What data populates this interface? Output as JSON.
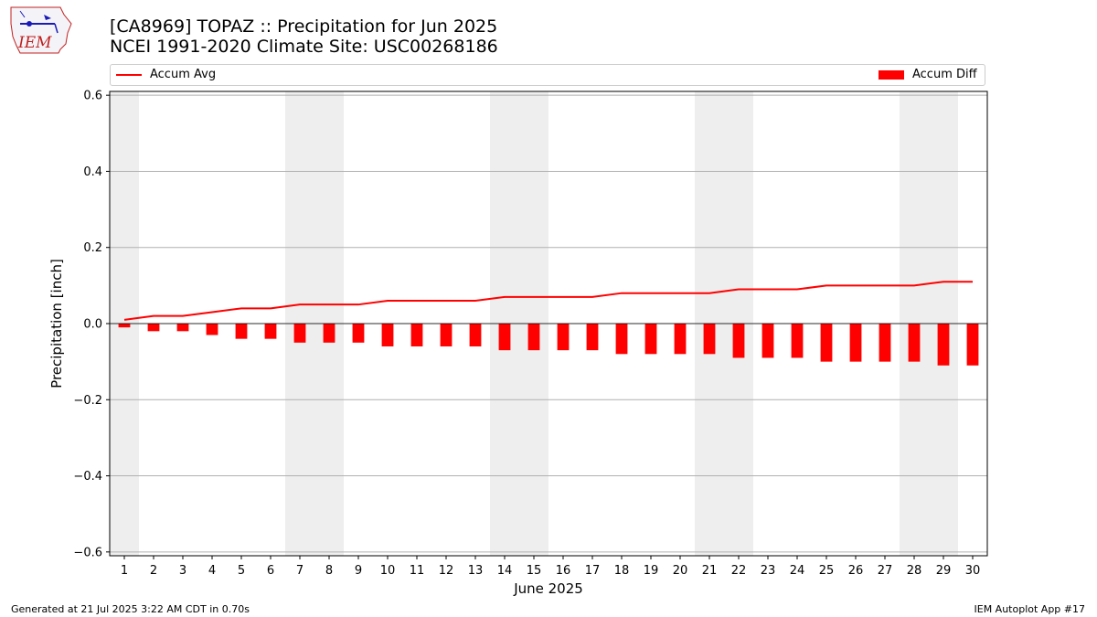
{
  "header": {
    "title_line1": "[CA8969] TOPAZ :: Precipitation for Jun 2025",
    "title_line2": "NCEI 1991-2020 Climate Site: USC00268186",
    "logo_text": "IEM"
  },
  "legend": {
    "line_label": "Accum Avg",
    "bar_label": "Accum Diff"
  },
  "footer": {
    "left": "Generated at 21 Jul 2025 3:22 AM CDT in 0.70s",
    "right": "IEM Autoplot App #17"
  },
  "colors": {
    "series": "#ff0000",
    "weekend_shade": "#eeeeee",
    "grid": "#b0b0b0"
  },
  "chart_data": {
    "type": "bar",
    "xlabel": "June 2025",
    "ylabel": "Precipitation [inch]",
    "ylim": [
      -0.61,
      0.61
    ],
    "xlim": [
      0.5,
      30.5
    ],
    "yticks": [
      -0.6,
      -0.4,
      -0.2,
      0.0,
      0.2,
      0.4,
      0.6
    ],
    "ytick_labels": [
      "−0.6",
      "−0.4",
      "−0.2",
      "0.0",
      "0.2",
      "0.4",
      "0.6"
    ],
    "categories": [
      "1",
      "2",
      "3",
      "4",
      "5",
      "6",
      "7",
      "8",
      "9",
      "10",
      "11",
      "12",
      "13",
      "14",
      "15",
      "16",
      "17",
      "18",
      "19",
      "20",
      "21",
      "22",
      "23",
      "24",
      "25",
      "26",
      "27",
      "28",
      "29",
      "30"
    ],
    "grid": "horizontal",
    "legend_position": "top",
    "weekend_shading": [
      [
        0.5,
        1.5
      ],
      [
        6.5,
        8.5
      ],
      [
        13.5,
        15.5
      ],
      [
        20.5,
        22.5
      ],
      [
        27.5,
        29.5
      ]
    ],
    "series": [
      {
        "name": "Accum Avg",
        "kind": "line",
        "values": [
          0.01,
          0.02,
          0.02,
          0.03,
          0.04,
          0.04,
          0.05,
          0.05,
          0.05,
          0.06,
          0.06,
          0.06,
          0.06,
          0.07,
          0.07,
          0.07,
          0.07,
          0.08,
          0.08,
          0.08,
          0.08,
          0.09,
          0.09,
          0.09,
          0.1,
          0.1,
          0.1,
          0.1,
          0.11,
          0.11
        ]
      },
      {
        "name": "Accum Diff",
        "kind": "bar",
        "values": [
          -0.01,
          -0.02,
          -0.02,
          -0.03,
          -0.04,
          -0.04,
          -0.05,
          -0.05,
          -0.05,
          -0.06,
          -0.06,
          -0.06,
          -0.06,
          -0.07,
          -0.07,
          -0.07,
          -0.07,
          -0.08,
          -0.08,
          -0.08,
          -0.08,
          -0.09,
          -0.09,
          -0.09,
          -0.1,
          -0.1,
          -0.1,
          -0.1,
          -0.11,
          -0.11
        ]
      }
    ]
  }
}
